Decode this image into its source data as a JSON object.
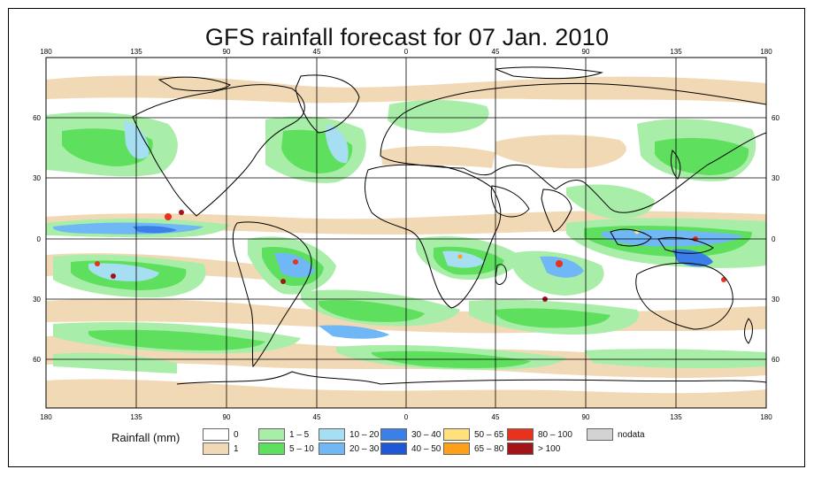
{
  "title": "GFS rainfall forecast for 07 Jan. 2010",
  "axes": {
    "lon_ticks": [
      "180",
      "135",
      "90",
      "45",
      "0",
      "45",
      "90",
      "135",
      "180"
    ],
    "lat_ticks_left": [
      "60",
      "30",
      "0",
      "30",
      "60"
    ],
    "lat_ticks_right": [
      "60",
      "30",
      "0",
      "30",
      "60"
    ]
  },
  "legend": {
    "title": "Rainfall (mm)",
    "items": [
      {
        "label": "0",
        "color": "#ffffff"
      },
      {
        "label": "1",
        "color": "#f2d9b5"
      },
      {
        "label": "1 – 5",
        "color": "#a8eea8"
      },
      {
        "label": "5 – 10",
        "color": "#5ee05e"
      },
      {
        "label": "10 – 20",
        "color": "#a6dff2"
      },
      {
        "label": "20 – 30",
        "color": "#6fb7f5"
      },
      {
        "label": "30 – 40",
        "color": "#3a80e8"
      },
      {
        "label": "40 – 50",
        "color": "#1f57d6"
      },
      {
        "label": "50 – 65",
        "color": "#ffe07a"
      },
      {
        "label": "65 – 80",
        "color": "#ff9f1a"
      },
      {
        "label": "80 – 100",
        "color": "#e8321e"
      },
      {
        "label": "> 100",
        "color": "#a31418"
      },
      {
        "label": "nodata",
        "color": "#d3d3d3"
      }
    ]
  },
  "colors": {
    "ocean_dry": "#ffffff",
    "light_rain": "#f2d9b5",
    "rain_1_5": "#a8eea8",
    "rain_5_10": "#5ee05e",
    "rain_10_20": "#a6dff2",
    "rain_20_30": "#6fb7f5",
    "rain_30_40": "#3a80e8",
    "heavy": "#e8321e",
    "coast": "#000000"
  }
}
